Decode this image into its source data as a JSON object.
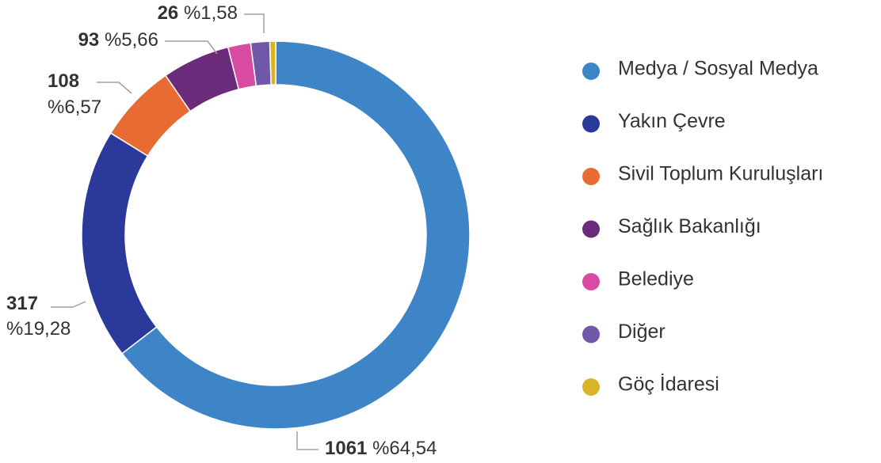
{
  "chart_data": {
    "type": "donut",
    "categories": [
      "Medya / Sosyal Medya",
      "Yakın Çevre",
      "Sivil Toplum Kuruluşları",
      "Sağlık Bakanlığı",
      "Belediye",
      "Diğer",
      "Göç İdaresi"
    ],
    "values": [
      1061,
      317,
      108,
      93,
      31,
      26,
      8
    ],
    "percent_labels": [
      "%64,54",
      "%19,28",
      "%6,57",
      "%5,66",
      null,
      "%1,58",
      null
    ],
    "colors": [
      "#3d85c6",
      "#2b3a9a",
      "#e86b34",
      "#6b2a7a",
      "#d94ba1",
      "#7157a8",
      "#d8b42a"
    ],
    "legend": "right"
  }
}
